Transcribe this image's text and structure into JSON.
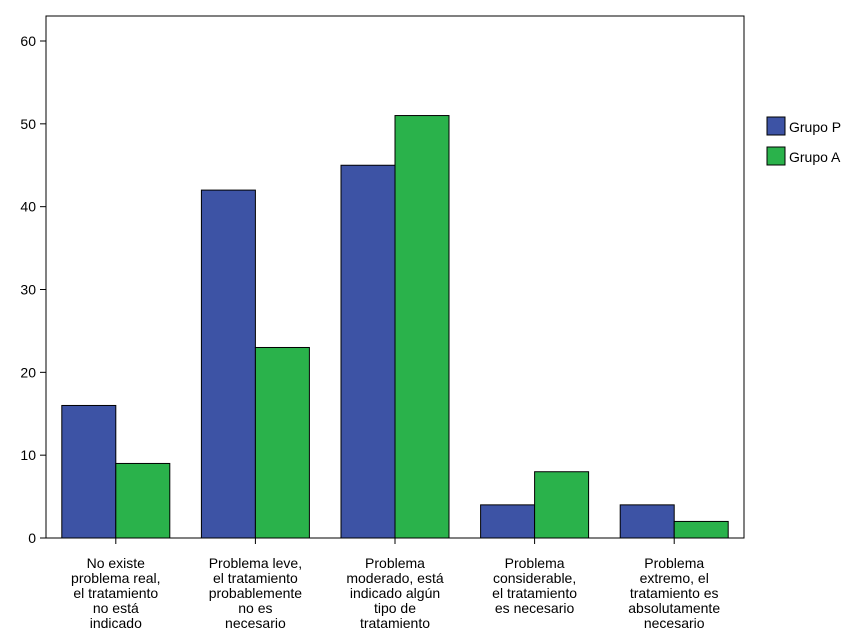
{
  "chart_data": {
    "type": "bar",
    "categories": [
      [
        "No existe",
        "problema real,",
        "el tratamiento",
        "no está",
        "indicado"
      ],
      [
        "Problema leve,",
        "el tratamiento",
        "probablemente",
        "no es",
        "necesario"
      ],
      [
        "Problema",
        "moderado, está",
        "indicado algún",
        "tipo de",
        "tratamiento"
      ],
      [
        "Problema",
        "considerable,",
        "el tratamiento",
        "es necesario"
      ],
      [
        "Problema",
        "extremo, el",
        "tratamiento es",
        "absolutamente",
        "necesario"
      ]
    ],
    "series": [
      {
        "name": "Grupo P",
        "values": [
          16,
          42,
          45,
          4,
          4
        ],
        "color": "#3d53a5"
      },
      {
        "name": "Grupo A",
        "values": [
          9,
          23,
          51,
          8,
          2
        ],
        "color": "#2ab24b"
      }
    ],
    "ylim": [
      0,
      60
    ],
    "yticks": [
      0,
      10,
      20,
      30,
      40,
      50,
      60
    ],
    "grid": false,
    "legend_position": "right"
  }
}
